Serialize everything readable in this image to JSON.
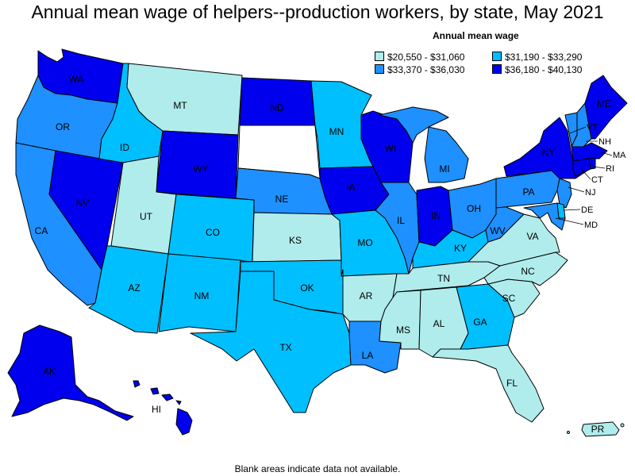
{
  "title": "Annual mean wage of helpers--production workers, by state, May 2021",
  "legend": {
    "title": "Annual mean wage",
    "items": [
      {
        "label": "$20,550 - $31,060",
        "color": "#b0ecec"
      },
      {
        "label": "$31,190 - $33,290",
        "color": "#00bfff"
      },
      {
        "label": "$33,370 - $36,030",
        "color": "#1e90ff"
      },
      {
        "label": "$36,180 - $40,130",
        "color": "#0000ee"
      }
    ]
  },
  "footnote": "Blank areas indicate data not available.",
  "colors": {
    "c1": "#b0ecec",
    "c2": "#00bfff",
    "c3": "#1e90ff",
    "c4": "#0000ee",
    "na": "#ffffff"
  },
  "states": [
    {
      "abbr": "WA",
      "bin": 4
    },
    {
      "abbr": "OR",
      "bin": 3
    },
    {
      "abbr": "CA",
      "bin": 3
    },
    {
      "abbr": "NV",
      "bin": 4
    },
    {
      "abbr": "ID",
      "bin": 2
    },
    {
      "abbr": "MT",
      "bin": 1
    },
    {
      "abbr": "WY",
      "bin": 4
    },
    {
      "abbr": "UT",
      "bin": 1
    },
    {
      "abbr": "AZ",
      "bin": 2
    },
    {
      "abbr": "CO",
      "bin": 2
    },
    {
      "abbr": "NM",
      "bin": 2
    },
    {
      "abbr": "ND",
      "bin": 4
    },
    {
      "abbr": "SD",
      "bin": 0
    },
    {
      "abbr": "NE",
      "bin": 3
    },
    {
      "abbr": "KS",
      "bin": 1
    },
    {
      "abbr": "OK",
      "bin": 2
    },
    {
      "abbr": "TX",
      "bin": 2
    },
    {
      "abbr": "MN",
      "bin": 2
    },
    {
      "abbr": "IA",
      "bin": 4
    },
    {
      "abbr": "MO",
      "bin": 2
    },
    {
      "abbr": "AR",
      "bin": 1
    },
    {
      "abbr": "LA",
      "bin": 3
    },
    {
      "abbr": "WI",
      "bin": 4
    },
    {
      "abbr": "IL",
      "bin": 3
    },
    {
      "abbr": "MI",
      "bin": 3
    },
    {
      "abbr": "IN",
      "bin": 4
    },
    {
      "abbr": "OH",
      "bin": 3
    },
    {
      "abbr": "KY",
      "bin": 2
    },
    {
      "abbr": "TN",
      "bin": 1
    },
    {
      "abbr": "MS",
      "bin": 1
    },
    {
      "abbr": "AL",
      "bin": 1
    },
    {
      "abbr": "GA",
      "bin": 2
    },
    {
      "abbr": "FL",
      "bin": 1
    },
    {
      "abbr": "SC",
      "bin": 1
    },
    {
      "abbr": "NC",
      "bin": 1
    },
    {
      "abbr": "VA",
      "bin": 1
    },
    {
      "abbr": "WV",
      "bin": 3
    },
    {
      "abbr": "PA",
      "bin": 3
    },
    {
      "abbr": "NY",
      "bin": 4
    },
    {
      "abbr": "VT",
      "bin": 3
    },
    {
      "abbr": "NH",
      "bin": 3
    },
    {
      "abbr": "ME",
      "bin": 4
    },
    {
      "abbr": "MA",
      "bin": 4
    },
    {
      "abbr": "RI",
      "bin": 4
    },
    {
      "abbr": "CT",
      "bin": 4
    },
    {
      "abbr": "NJ",
      "bin": 3
    },
    {
      "abbr": "DE",
      "bin": 2
    },
    {
      "abbr": "MD",
      "bin": 3
    },
    {
      "abbr": "AK",
      "bin": 4
    },
    {
      "abbr": "HI",
      "bin": 4
    },
    {
      "abbr": "PR",
      "bin": 1
    }
  ]
}
